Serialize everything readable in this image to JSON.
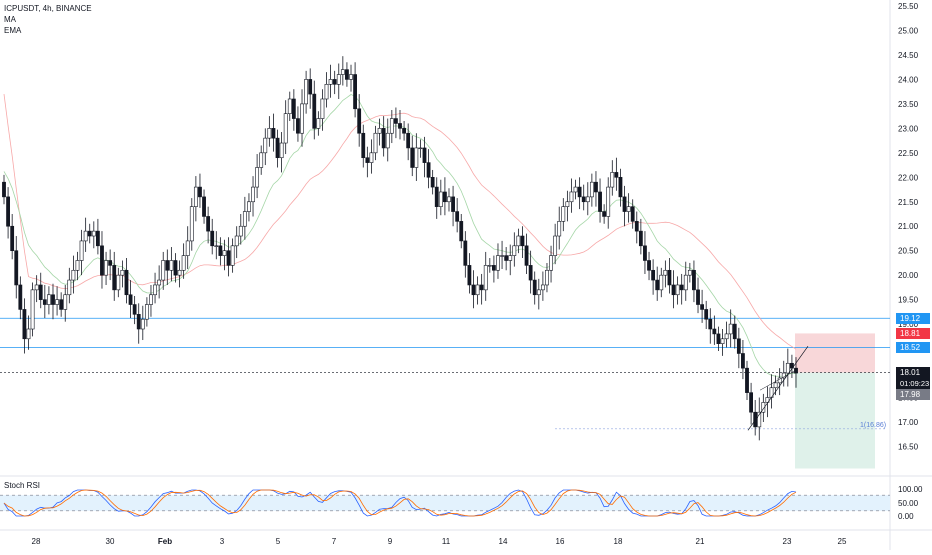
{
  "legend": {
    "symbol": "ICPUSDT, 4h, BINANCE",
    "ind1": "MA",
    "ind2": "EMA"
  },
  "rsi": {
    "label": "Stoch RSI",
    "ticks": [
      "100.00",
      "50.00",
      "0.00"
    ]
  },
  "price_axis": {
    "ticks": [
      "25.50",
      "25.00",
      "24.50",
      "24.00",
      "23.50",
      "23.00",
      "22.50",
      "22.00",
      "21.50",
      "21.00",
      "20.50",
      "20.00",
      "19.50",
      "19.00",
      "18.50",
      "18.00",
      "17.50",
      "17.00",
      "16.50"
    ],
    "min": 16.0,
    "max": 25.7
  },
  "time_axis": {
    "labels": [
      "28",
      "30",
      "Feb",
      "3",
      "5",
      "7",
      "9",
      "11",
      "14",
      "16",
      "18",
      "21",
      "23",
      "25"
    ]
  },
  "badges": {
    "resistance": "19.12",
    "stop": "18.81",
    "support": "18.52",
    "last_price": "18.01",
    "countdown": "01:09:23",
    "alt_price": "17.98"
  },
  "annotations": {
    "fib": "1(16.86)"
  },
  "levels": {
    "resistance": 19.12,
    "support": 18.52,
    "last": 18.01,
    "fib": 16.86,
    "stop": 18.81,
    "target": 16.05
  },
  "colors": {
    "up": "#ffffff",
    "down": "#131722",
    "outline": "#131722",
    "level_line": "#2196f3",
    "ma": "#f7a8a8",
    "ema": "#a5d6a7",
    "stop_zone": "#f8d7d9",
    "target_zone": "#dff1ea",
    "stop_badge": "#f23645",
    "last_badge": "#131722",
    "alt_badge": "#787b86",
    "rsi_k": "#2962ff",
    "rsi_d": "#ff6d00",
    "rsi_band": "#e3f2fd"
  },
  "chart_data": {
    "type": "candlestick",
    "title": "ICPUSDT, 4h, BINANCE",
    "ylim": [
      16.0,
      25.7
    ],
    "close": [
      21.6,
      21.0,
      20.5,
      19.8,
      19.3,
      18.7,
      18.9,
      19.7,
      19.8,
      19.5,
      19.4,
      19.6,
      19.4,
      19.5,
      19.3,
      19.6,
      19.9,
      20.1,
      20.3,
      20.7,
      20.9,
      20.8,
      20.9,
      20.6,
      20.0,
      20.3,
      20.2,
      19.7,
      20.0,
      20.1,
      19.6,
      19.4,
      19.2,
      18.9,
      19.1,
      19.4,
      19.6,
      19.8,
      19.9,
      20.3,
      20.1,
      20.3,
      20.0,
      20.1,
      20.4,
      20.7,
      21.4,
      21.8,
      21.6,
      21.2,
      20.9,
      20.6,
      20.6,
      20.4,
      20.5,
      20.2,
      20.6,
      20.8,
      21.0,
      21.3,
      21.5,
      21.8,
      22.2,
      22.5,
      22.8,
      23.0,
      22.8,
      22.4,
      22.7,
      23.3,
      23.6,
      23.2,
      22.9,
      23.5,
      24.0,
      23.7,
      23.0,
      23.2,
      23.6,
      23.9,
      24.0,
      23.9,
      24.1,
      24.2,
      24.0,
      24.1,
      23.4,
      22.9,
      22.4,
      22.3,
      22.5,
      22.9,
      23.0,
      22.6,
      22.9,
      23.2,
      23.1,
      23.0,
      22.9,
      22.6,
      22.2,
      22.6,
      22.6,
      22.3,
      22.0,
      21.8,
      21.4,
      21.7,
      21.5,
      21.6,
      21.3,
      21.1,
      20.7,
      20.2,
      19.8,
      19.6,
      19.8,
      19.7,
      20.2,
      20.2,
      20.1,
      20.4,
      20.4,
      20.3,
      20.4,
      20.6,
      20.8,
      20.6,
      20.2,
      19.9,
      19.6,
      19.7,
      19.8,
      20.1,
      20.4,
      20.8,
      21.1,
      21.4,
      21.5,
      21.7,
      21.8,
      21.6,
      21.5,
      21.6,
      21.9,
      21.7,
      21.3,
      21.2,
      21.8,
      22.1,
      22.0,
      21.6,
      21.3,
      21.4,
      21.1,
      20.9,
      20.6,
      20.3,
      20.1,
      19.9,
      19.7,
      20.0,
      20.1,
      19.8,
      19.6,
      19.8,
      19.7,
      20.0,
      20.1,
      19.7,
      19.4,
      19.3,
      19.1,
      18.9,
      18.8,
      18.6,
      18.7,
      18.8,
      19.0,
      18.7,
      18.4,
      18.1,
      17.6,
      17.2,
      16.9,
      17.2,
      17.4,
      17.5,
      17.7,
      17.8,
      17.9,
      18.0,
      18.2,
      18.1,
      18.0
    ]
  }
}
